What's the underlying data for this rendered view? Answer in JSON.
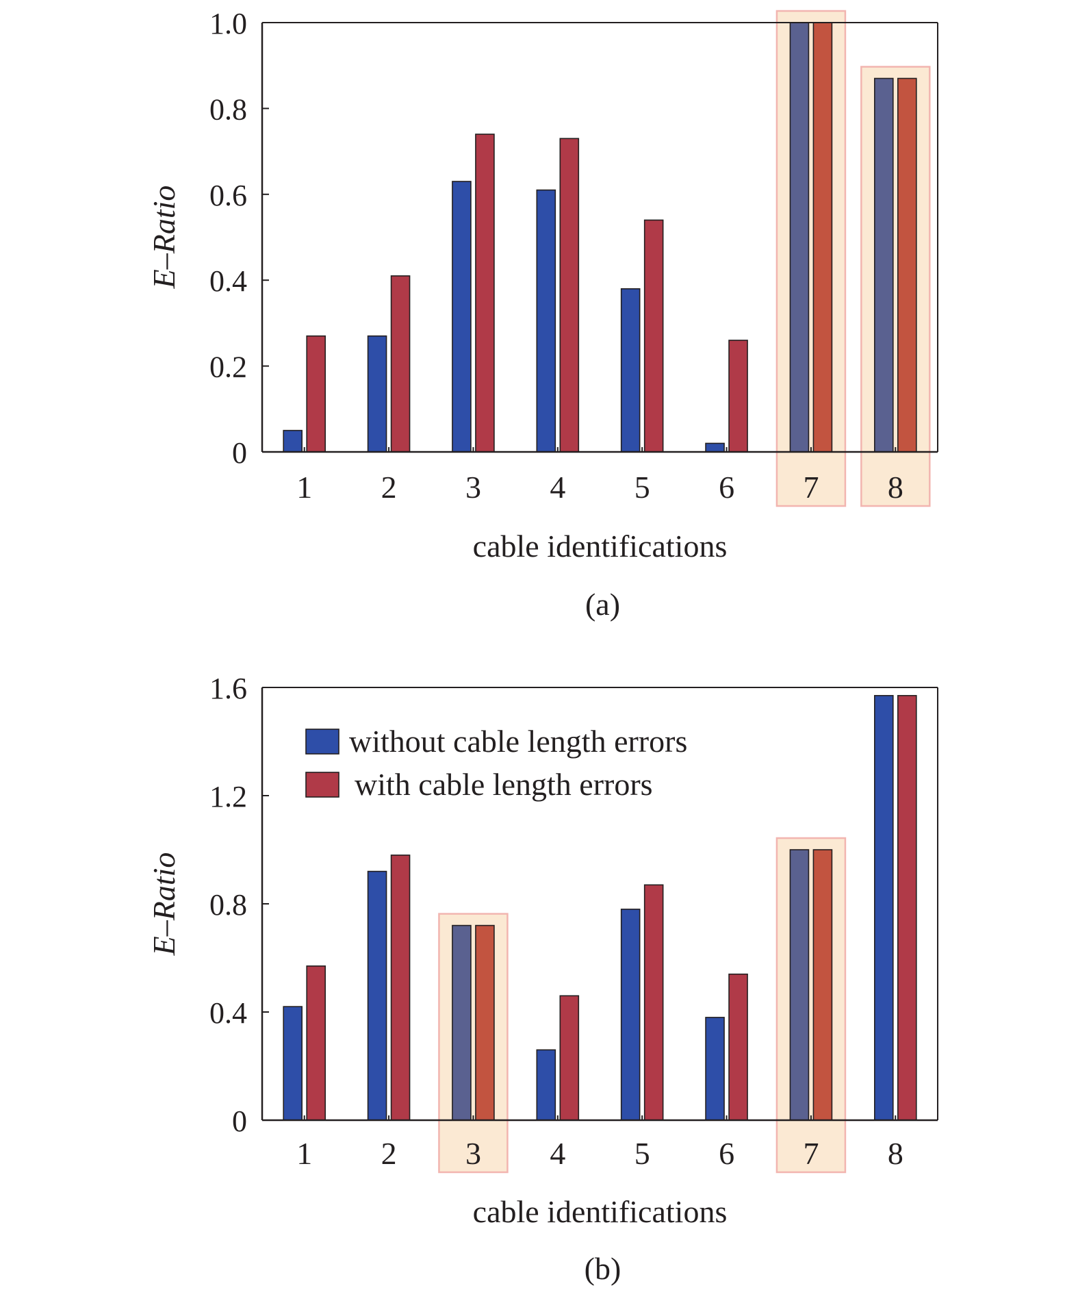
{
  "colors": {
    "series_without": "#2e4ea8",
    "series_with": "#b03a48",
    "highlighted_without": "#5a6190",
    "highlighted_with": "#c25440",
    "highlight_fill": "#fbe9d3",
    "highlight_stroke": "#f2b5b0",
    "axis": "#231f20"
  },
  "chart_data": [
    {
      "type": "bar",
      "panel_label": "(a)",
      "xlabel": "cable identifications",
      "ylabel": "E–Ratio",
      "ylim": [
        0,
        1.0
      ],
      "yticks": [
        "0",
        "0.2",
        "0.4",
        "0.6",
        "0.8",
        "1.0"
      ],
      "ytick_values": [
        0,
        0.2,
        0.4,
        0.6,
        0.8,
        1.0
      ],
      "categories": [
        "1",
        "2",
        "3",
        "4",
        "5",
        "6",
        "7",
        "8"
      ],
      "series": [
        {
          "name": "without cable length errors",
          "values": [
            0.05,
            0.27,
            0.63,
            0.61,
            0.38,
            0.02,
            1.0,
            0.87
          ]
        },
        {
          "name": "with cable length errors",
          "values": [
            0.27,
            0.41,
            0.74,
            0.73,
            0.54,
            0.26,
            1.0,
            0.87
          ]
        }
      ],
      "highlighted_categories": [
        "7",
        "8"
      ],
      "legend": false,
      "grid": false
    },
    {
      "type": "bar",
      "panel_label": "(b)",
      "xlabel": "cable identifications",
      "ylabel": "E–Ratio",
      "ylim": [
        0,
        1.6
      ],
      "yticks": [
        "0",
        "0.4",
        "0.8",
        "1.2",
        "1.6"
      ],
      "ytick_values": [
        0,
        0.4,
        0.8,
        1.2,
        1.6
      ],
      "categories": [
        "1",
        "2",
        "3",
        "4",
        "5",
        "6",
        "7",
        "8"
      ],
      "series": [
        {
          "name": "without cable length errors",
          "values": [
            0.42,
            0.92,
            0.72,
            0.26,
            0.78,
            0.38,
            1.0,
            1.57
          ]
        },
        {
          "name": "with cable length errors",
          "values": [
            0.57,
            0.98,
            0.72,
            0.46,
            0.87,
            0.54,
            1.0,
            1.57
          ]
        }
      ],
      "highlighted_categories": [
        "3",
        "7"
      ],
      "legend": true,
      "legend_placement": "top-left",
      "grid": false
    }
  ]
}
